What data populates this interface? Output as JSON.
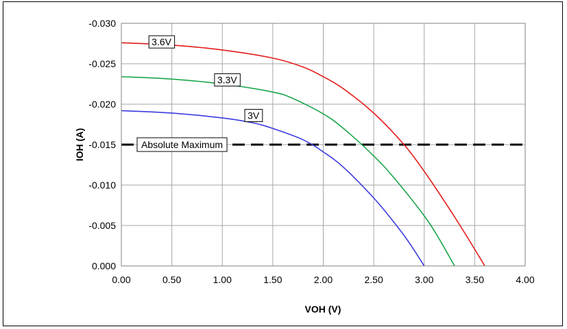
{
  "chart_data": {
    "type": "line",
    "xlabel": "VOH (V)",
    "ylabel": "IOH (A)",
    "xlim": [
      0,
      4
    ],
    "ylim": [
      0,
      -0.03
    ],
    "y_axis_inverted": true,
    "grid": true,
    "x_ticks": [
      "0.00",
      "0.50",
      "1.00",
      "1.50",
      "2.00",
      "2.50",
      "3.00",
      "3.50",
      "4.00"
    ],
    "y_ticks": [
      "0.000",
      "-0.005",
      "-0.010",
      "-0.015",
      "-0.020",
      "-0.025",
      "-0.030"
    ],
    "series": [
      {
        "name": "3.6V",
        "color": "#e31b1b",
        "x": [
          0,
          0.5,
          1.0,
          1.5,
          1.8,
          2.0,
          2.2,
          2.5,
          2.8,
          3.0,
          3.2,
          3.4,
          3.6
        ],
        "y": [
          -0.0276,
          -0.0273,
          -0.0267,
          -0.0257,
          -0.0246,
          -0.0234,
          -0.0219,
          -0.0189,
          -0.015,
          -0.0117,
          -0.008,
          -0.0041,
          0.0
        ]
      },
      {
        "name": "3.3V",
        "color": "#1aa54a",
        "x": [
          0,
          0.5,
          1.0,
          1.5,
          1.7,
          2.0,
          2.2,
          2.5,
          2.7,
          3.0,
          3.15,
          3.3
        ],
        "y": [
          -0.0234,
          -0.0231,
          -0.0225,
          -0.0215,
          -0.0207,
          -0.0188,
          -0.017,
          -0.0136,
          -0.0109,
          -0.0062,
          -0.0033,
          0.0
        ]
      },
      {
        "name": "3V",
        "color": "#3b3be0",
        "x": [
          0,
          0.5,
          1.0,
          1.3,
          1.5,
          1.8,
          2.0,
          2.2,
          2.5,
          2.7,
          2.85,
          3.0
        ],
        "y": [
          -0.0192,
          -0.0189,
          -0.0183,
          -0.0177,
          -0.017,
          -0.0156,
          -0.0141,
          -0.0122,
          -0.0084,
          -0.0054,
          -0.0029,
          0.0
        ]
      }
    ],
    "reference_line": {
      "label": "Absolute Maximum",
      "y": -0.015,
      "color": "#000000",
      "style": "dashed"
    },
    "curve_labels": [
      {
        "text": "3.6V",
        "x": 0.3,
        "y": -0.0277
      },
      {
        "text": "3.3V",
        "x": 0.95,
        "y": -0.023
      },
      {
        "text": "3V",
        "x": 1.25,
        "y": -0.0186
      }
    ]
  }
}
